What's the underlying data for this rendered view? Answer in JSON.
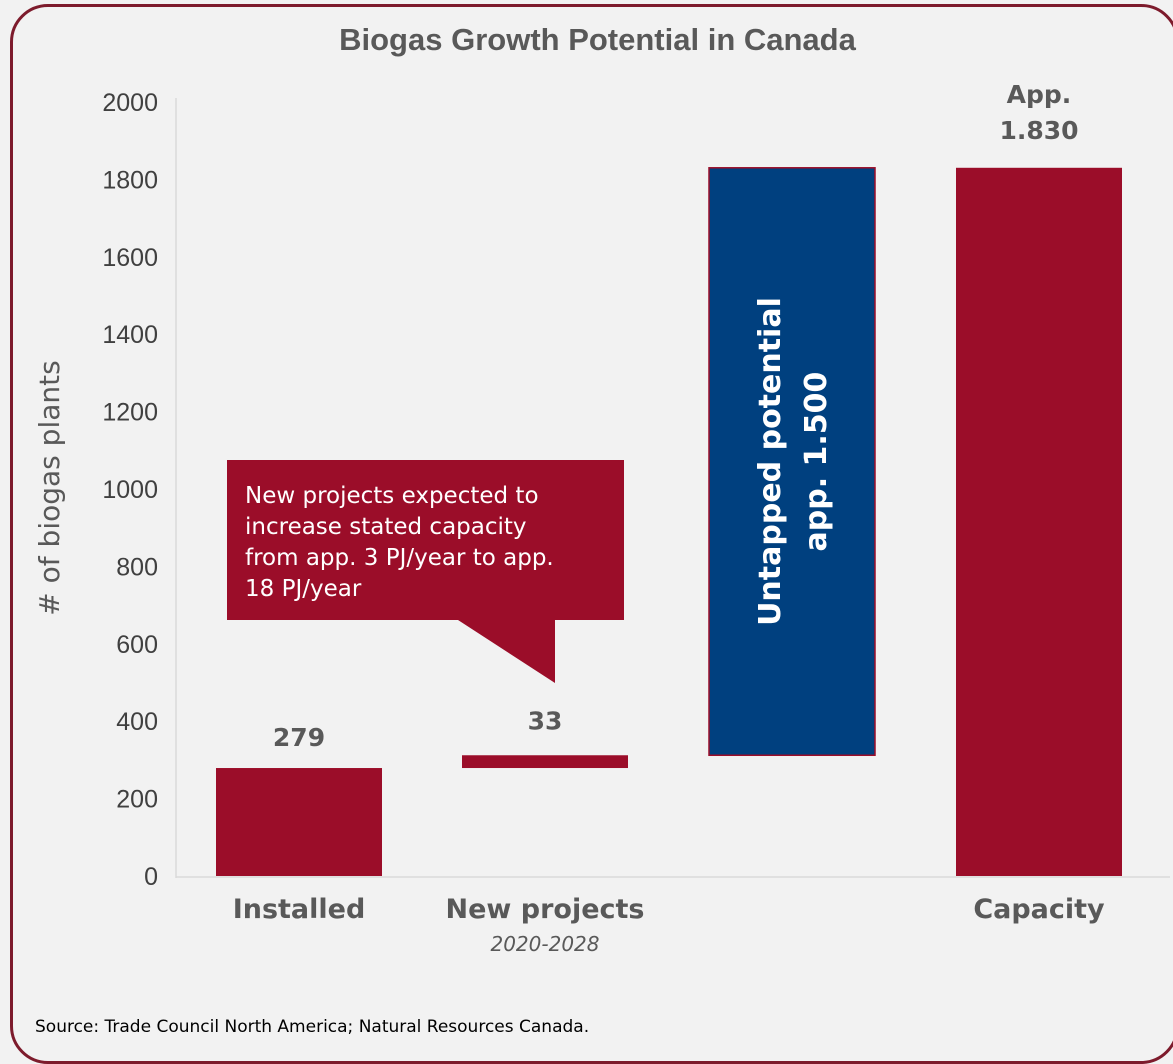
{
  "chart_data": {
    "type": "bar",
    "title": "Biogas Growth Potential in Canada",
    "ylabel": "# of biogas plants",
    "ylim": [
      0,
      2000
    ],
    "yticks": [
      0,
      200,
      400,
      600,
      800,
      1000,
      1200,
      1400,
      1600,
      1800,
      2000
    ],
    "categories": [
      "Installed",
      "New projects",
      "",
      "Capacity"
    ],
    "category_sublabels": [
      "",
      "2020-2028",
      "",
      ""
    ],
    "bars": [
      {
        "category": "Installed",
        "base": 0,
        "top": 279,
        "label": "279",
        "color": "#9b0d29"
      },
      {
        "category": "New projects",
        "base": 279,
        "top": 312,
        "label": "33",
        "color": "#9b0d29"
      },
      {
        "category": "",
        "base": 312,
        "top": 1830,
        "label": "Untapped potential\napp. 1.500",
        "color": "#00407f"
      },
      {
        "category": "Capacity",
        "base": 0,
        "top": 1830,
        "label": "App.\n1.830",
        "color": "#9b0d29"
      }
    ],
    "grid": false
  },
  "callout": {
    "lines": [
      "New projects expected to",
      "increase stated capacity",
      "from app. 3 PJ/year to app.",
      "18 PJ/year"
    ],
    "color": "#9b0d29"
  },
  "source": "Source: Trade Council North America; Natural Resources Canada."
}
